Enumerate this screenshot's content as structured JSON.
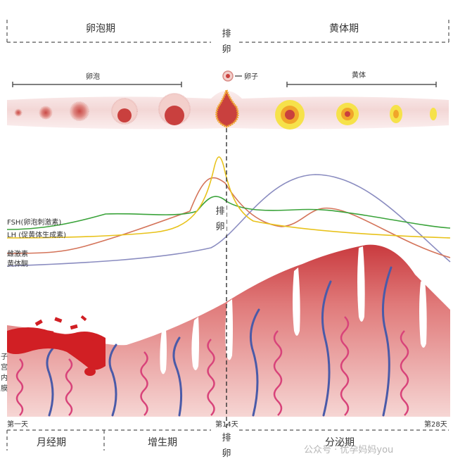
{
  "top": {
    "follicular_phase": "卵泡期",
    "ovulation": [
      "排",
      "卵"
    ],
    "luteal_phase": "黄体期"
  },
  "ovary": {
    "follicle_label": "卵泡",
    "egg_label": "卵子",
    "corpus_luteum_label": "黄体"
  },
  "hormones": {
    "fsh": "FSH(卵泡刺激素)",
    "lh": "LH (促黄体生成素)",
    "estrogen": "雌激素",
    "progesterone": "黄体酮",
    "ovulation_mid": [
      "排",
      "卵"
    ],
    "colors": {
      "fsh": "#3aa33a",
      "lh": "#e8c21a",
      "estrogen": "#d4745a",
      "progesterone": "#8a8cc0"
    }
  },
  "endometrium": {
    "side_label": [
      "子",
      "宫",
      "内",
      "膜"
    ]
  },
  "days": {
    "day1": "第一天",
    "day14": "第14天",
    "day28": "第28天"
  },
  "bottom": {
    "menstrual": "月经期",
    "proliferative": "增生期",
    "ovulation": [
      "排",
      "卵"
    ],
    "secretory": "分泌期",
    "watermark": "公众号 · 优孕妈妈you"
  }
}
